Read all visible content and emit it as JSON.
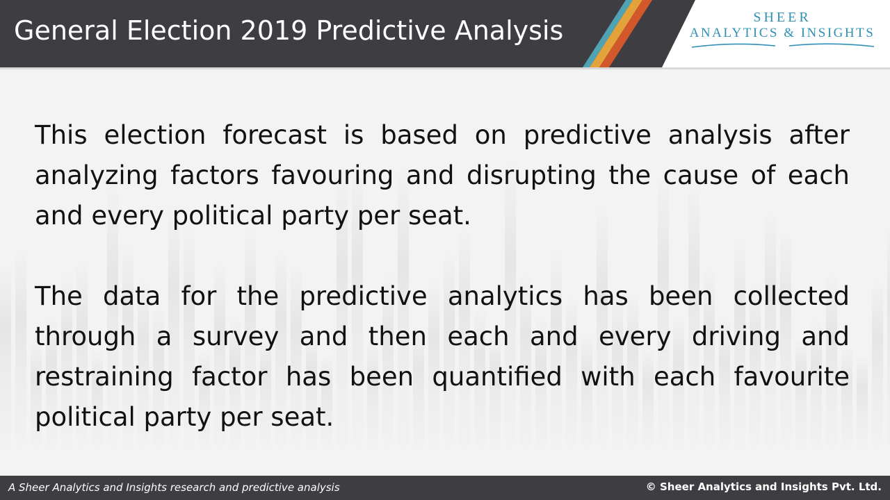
{
  "header": {
    "title": "General Election 2019 Predictive Analysis",
    "logo_line1": "SHEER",
    "logo_line2": "ANALYTICS & INSIGHTS",
    "stripe_colors": [
      "#4fa3b5",
      "#e3a23a",
      "#d2572b"
    ],
    "background": "#3e3e42",
    "logo_color": "#2f8fb4"
  },
  "content": {
    "paragraph1": "This election forecast is based on predictive analysis after analyzing factors favouring and disrupting the cause of each and every political party per seat.",
    "paragraph2": "The data for the predictive analytics has been collected through a survey and then each and every driving and restraining factor has been quantified with each favourite political party per seat."
  },
  "footer": {
    "left": "A Sheer Analytics and Insights research and predictive analysis",
    "right": "© Sheer Analytics and Insights Pvt. Ltd."
  }
}
